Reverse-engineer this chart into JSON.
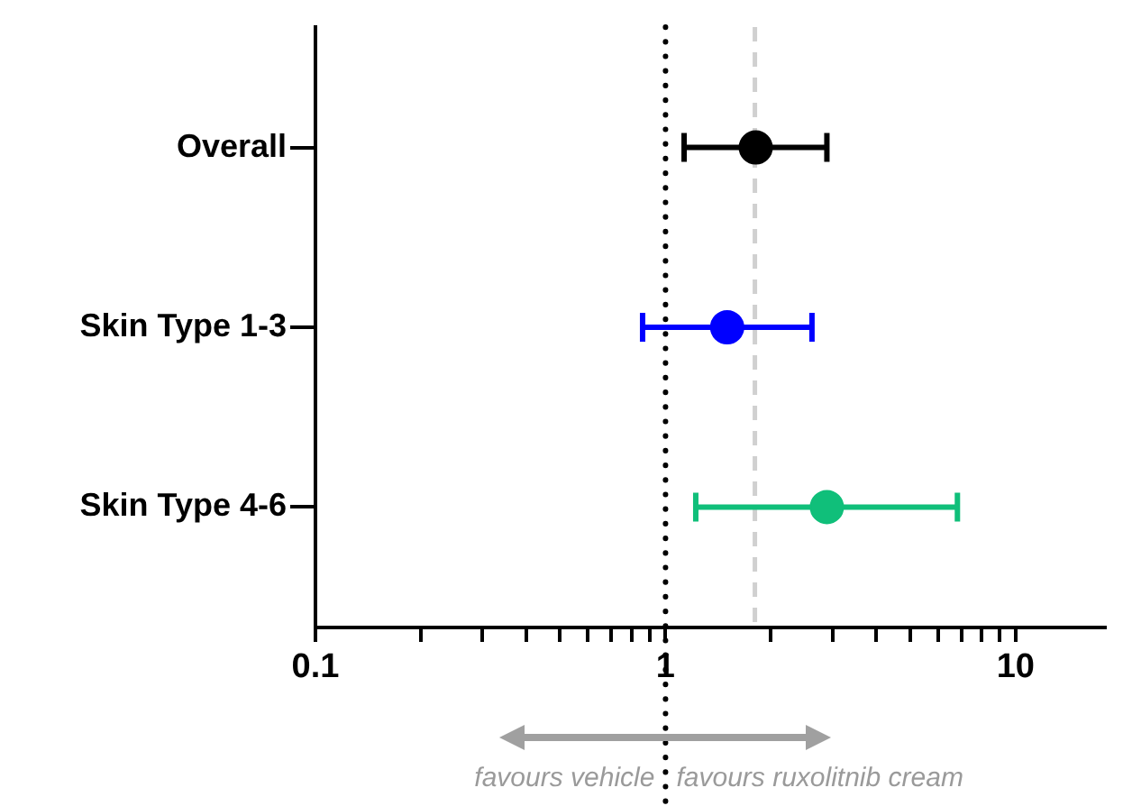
{
  "chart_data": {
    "type": "scatter",
    "orientation": "horizontal",
    "log": "x",
    "marker": "circle",
    "categories": [
      "Overall",
      "Skin Type 1-3",
      "Skin Type 4-6"
    ],
    "series": [
      {
        "values": [
          1.81,
          1.5,
          2.89
        ],
        "colors": [
          "#000000",
          "#0000ff",
          "#10bf7a"
        ],
        "errors": [
          [
            1.13,
            2.89
          ],
          [
            0.86,
            2.62
          ],
          [
            1.22,
            6.82
          ]
        ]
      }
    ],
    "xlim": [
      0.1,
      18
    ],
    "xticks": [
      0.1,
      {
        "value": 0.2,
        "label": null
      },
      {
        "value": 0.3,
        "label": null
      },
      {
        "value": 0.4,
        "label": null
      },
      {
        "value": 0.5,
        "label": null
      },
      {
        "value": 0.6,
        "label": null
      },
      {
        "value": 0.7,
        "label": null
      },
      {
        "value": 0.8,
        "label": null
      },
      {
        "value": 0.9,
        "label": null
      },
      1,
      {
        "value": 2,
        "label": null
      },
      {
        "value": 3,
        "label": null
      },
      {
        "value": 4,
        "label": null
      },
      {
        "value": 5,
        "label": null
      },
      {
        "value": 6,
        "label": null
      },
      {
        "value": 7,
        "label": null
      },
      {
        "value": 8,
        "label": null
      },
      {
        "value": 9,
        "label": null
      },
      10
    ],
    "ref_lines": [
      {
        "axis": "x",
        "value": 1,
        "color": "#000000",
        "line_style": "dotted"
      },
      {
        "axis": "x",
        "value": 1.8,
        "color": "#d0d0d0",
        "line_style": "dashed"
      }
    ],
    "annotations": [
      "favours vehicle",
      "favours ruxolitnib cream"
    ],
    "grid": false
  }
}
